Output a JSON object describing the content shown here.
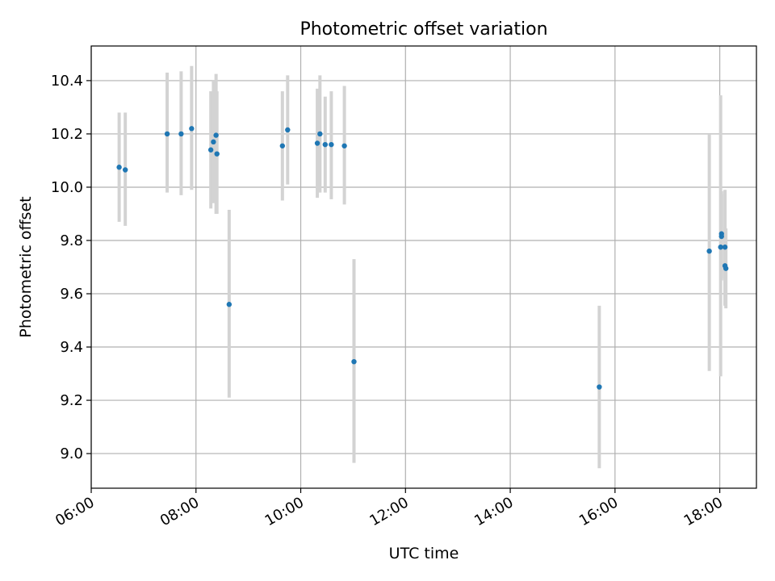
{
  "chart_data": {
    "type": "scatter",
    "title": "Photometric offset variation",
    "xlabel": "UTC time",
    "ylabel": "Photometric offset",
    "x_unit": "UTC time (HH:MM)",
    "xlim": [
      "06:00",
      "18:42"
    ],
    "ylim": [
      8.87,
      10.53
    ],
    "x_ticks": [
      "06:00",
      "08:00",
      "10:00",
      "12:00",
      "14:00",
      "16:00",
      "18:00"
    ],
    "y_ticks": [
      "9.0",
      "9.2",
      "9.4",
      "9.6",
      "9.8",
      "10.0",
      "10.2",
      "10.4"
    ],
    "grid": true,
    "colors": {
      "point": "#1f77b4",
      "errorbar": "#d3d3d3",
      "grid": "#b0b0b0"
    },
    "points": [
      {
        "x": "06:32",
        "y": 10.075,
        "ylow": 9.87,
        "yhigh": 10.28
      },
      {
        "x": "06:39",
        "y": 10.065,
        "ylow": 9.855,
        "yhigh": 10.28
      },
      {
        "x": "07:27",
        "y": 10.2,
        "ylow": 9.98,
        "yhigh": 10.43
      },
      {
        "x": "07:43",
        "y": 10.2,
        "ylow": 9.97,
        "yhigh": 10.435
      },
      {
        "x": "07:55",
        "y": 10.22,
        "ylow": 9.99,
        "yhigh": 10.455
      },
      {
        "x": "08:17",
        "y": 10.14,
        "ylow": 9.92,
        "yhigh": 10.36
      },
      {
        "x": "08:20",
        "y": 10.17,
        "ylow": 9.94,
        "yhigh": 10.4
      },
      {
        "x": "08:23",
        "y": 10.195,
        "ylow": 9.9,
        "yhigh": 10.425
      },
      {
        "x": "08:24",
        "y": 10.125,
        "ylow": 9.9,
        "yhigh": 10.36
      },
      {
        "x": "08:38",
        "y": 9.56,
        "ylow": 9.21,
        "yhigh": 9.915
      },
      {
        "x": "09:39",
        "y": 10.155,
        "ylow": 9.95,
        "yhigh": 10.36
      },
      {
        "x": "09:45",
        "y": 10.215,
        "ylow": 10.01,
        "yhigh": 10.42
      },
      {
        "x": "10:19",
        "y": 10.165,
        "ylow": 9.96,
        "yhigh": 10.37
      },
      {
        "x": "10:22",
        "y": 10.2,
        "ylow": 9.98,
        "yhigh": 10.42
      },
      {
        "x": "10:28",
        "y": 10.16,
        "ylow": 9.98,
        "yhigh": 10.34
      },
      {
        "x": "10:35",
        "y": 10.16,
        "ylow": 9.955,
        "yhigh": 10.36
      },
      {
        "x": "10:50",
        "y": 10.155,
        "ylow": 9.935,
        "yhigh": 10.38
      },
      {
        "x": "11:01",
        "y": 9.345,
        "ylow": 8.965,
        "yhigh": 9.73
      },
      {
        "x": "15:42",
        "y": 9.25,
        "ylow": 8.945,
        "yhigh": 9.555
      },
      {
        "x": "17:48",
        "y": 9.76,
        "ylow": 9.31,
        "yhigh": 10.2
      },
      {
        "x": "18:01",
        "y": 9.775,
        "ylow": 9.29,
        "yhigh": 10.345
      },
      {
        "x": "18:02",
        "y": 9.825,
        "ylow": 9.66,
        "yhigh": 9.985
      },
      {
        "x": "18:02",
        "y": 9.815,
        "ylow": 9.65,
        "yhigh": 9.975
      },
      {
        "x": "18:06",
        "y": 9.775,
        "ylow": 9.555,
        "yhigh": 9.99
      },
      {
        "x": "18:06",
        "y": 9.705,
        "ylow": 9.56,
        "yhigh": 9.85
      },
      {
        "x": "18:07",
        "y": 9.695,
        "ylow": 9.545,
        "yhigh": 9.845
      }
    ]
  }
}
